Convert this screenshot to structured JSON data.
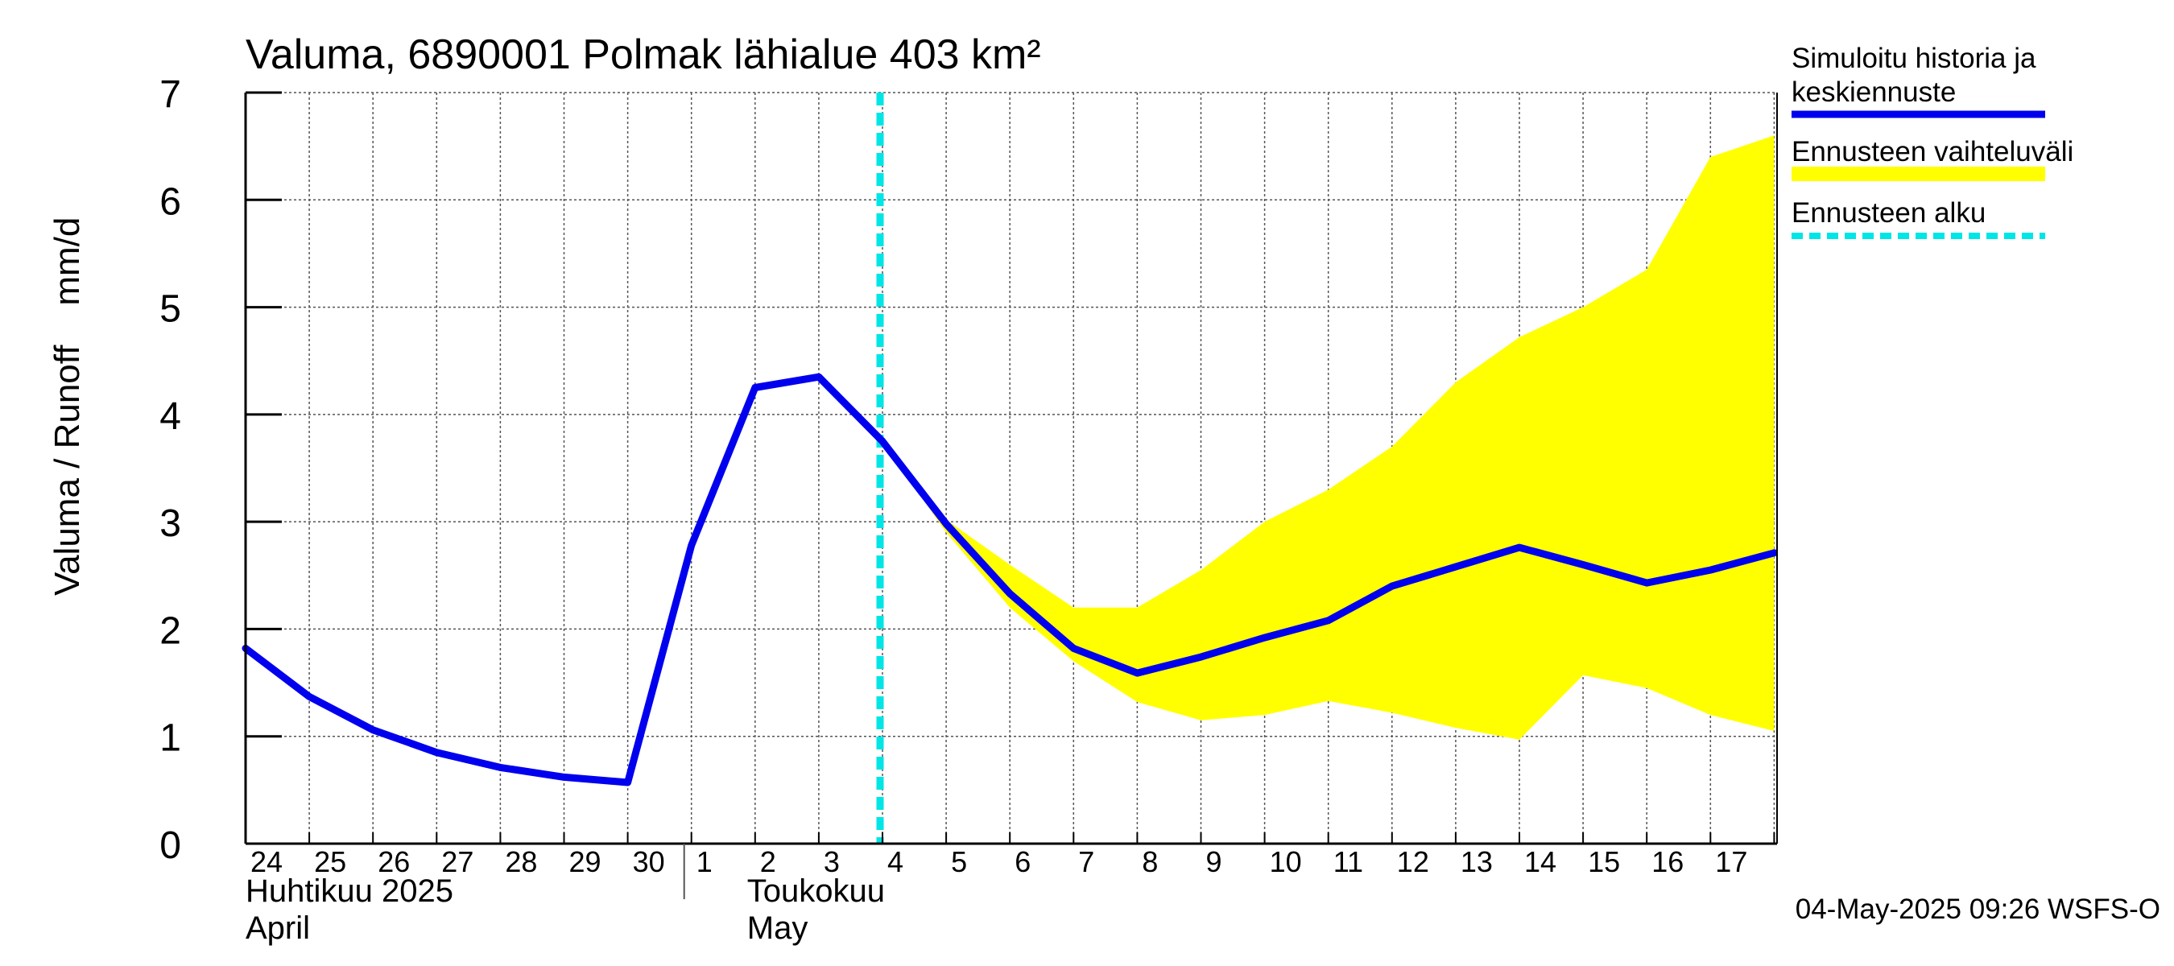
{
  "chart_data": {
    "type": "line",
    "title": "Valuma, 6890001 Polmak lähialue 403 km²",
    "ylabel": "Valuma / Runoff    mm/d",
    "ylim": [
      0,
      7
    ],
    "yticks": [
      0,
      1,
      2,
      3,
      4,
      5,
      6,
      7
    ],
    "x_start": "2025-04-24",
    "x_end": "2025-05-17",
    "x_tick_labels": [
      "24",
      "25",
      "26",
      "27",
      "28",
      "29",
      "30",
      "1",
      "2",
      "3",
      "4",
      "5",
      "6",
      "7",
      "8",
      "9",
      "10",
      "11",
      "12",
      "13",
      "14",
      "15",
      "16",
      "17"
    ],
    "month_labels": [
      {
        "fi": "Huhtikuu  2025",
        "en": "April"
      },
      {
        "fi": "Toukokuu",
        "en": "May"
      }
    ],
    "forecast_start": "2025-05-04",
    "series": [
      {
        "name": "Simuloitu historia ja keskiennuste",
        "color": "#0000ee",
        "x": [
          "2025-04-24",
          "2025-04-25",
          "2025-04-26",
          "2025-04-27",
          "2025-04-28",
          "2025-04-29",
          "2025-04-30",
          "2025-05-01",
          "2025-05-02",
          "2025-05-03",
          "2025-05-04",
          "2025-05-05",
          "2025-05-06",
          "2025-05-07",
          "2025-05-08",
          "2025-05-09",
          "2025-05-10",
          "2025-05-11",
          "2025-05-12",
          "2025-05-13",
          "2025-05-14",
          "2025-05-15",
          "2025-05-16",
          "2025-05-17",
          "2025-05-18"
        ],
        "values": [
          1.82,
          1.37,
          1.06,
          0.85,
          0.71,
          0.62,
          0.57,
          2.78,
          4.25,
          4.35,
          3.75,
          2.98,
          2.33,
          1.82,
          1.59,
          1.74,
          1.92,
          2.08,
          2.4,
          2.58,
          2.76,
          2.6,
          2.43,
          2.55,
          2.71
        ]
      },
      {
        "name": "Ennusteen vaihteluväli",
        "color": "#ffff00",
        "x": [
          "2025-05-04",
          "2025-05-05",
          "2025-05-06",
          "2025-05-07",
          "2025-05-08",
          "2025-05-09",
          "2025-05-10",
          "2025-05-11",
          "2025-05-12",
          "2025-05-13",
          "2025-05-14",
          "2025-05-15",
          "2025-05-16",
          "2025-05-17",
          "2025-05-18"
        ],
        "upper": [
          3.75,
          3.02,
          2.6,
          2.2,
          2.2,
          2.55,
          3.0,
          3.3,
          3.7,
          4.3,
          4.72,
          5.0,
          5.35,
          6.4,
          6.6
        ],
        "lower": [
          3.75,
          2.9,
          2.2,
          1.7,
          1.32,
          1.15,
          1.2,
          1.33,
          1.22,
          1.08,
          0.97,
          1.57,
          1.45,
          1.2,
          1.05
        ]
      }
    ],
    "legend": [
      {
        "label": "Simuloitu historia ja keskiennuste",
        "color": "#0000ee",
        "style": "solid"
      },
      {
        "label": "Ennusteen vaihteluväli",
        "color": "#ffff00",
        "style": "solid"
      },
      {
        "label": "Ennusteen alku",
        "color": "#00e5e5",
        "style": "dashed"
      }
    ],
    "legend_position": "right",
    "grid": true,
    "footer": "04-May-2025 09:26 WSFS-O"
  }
}
